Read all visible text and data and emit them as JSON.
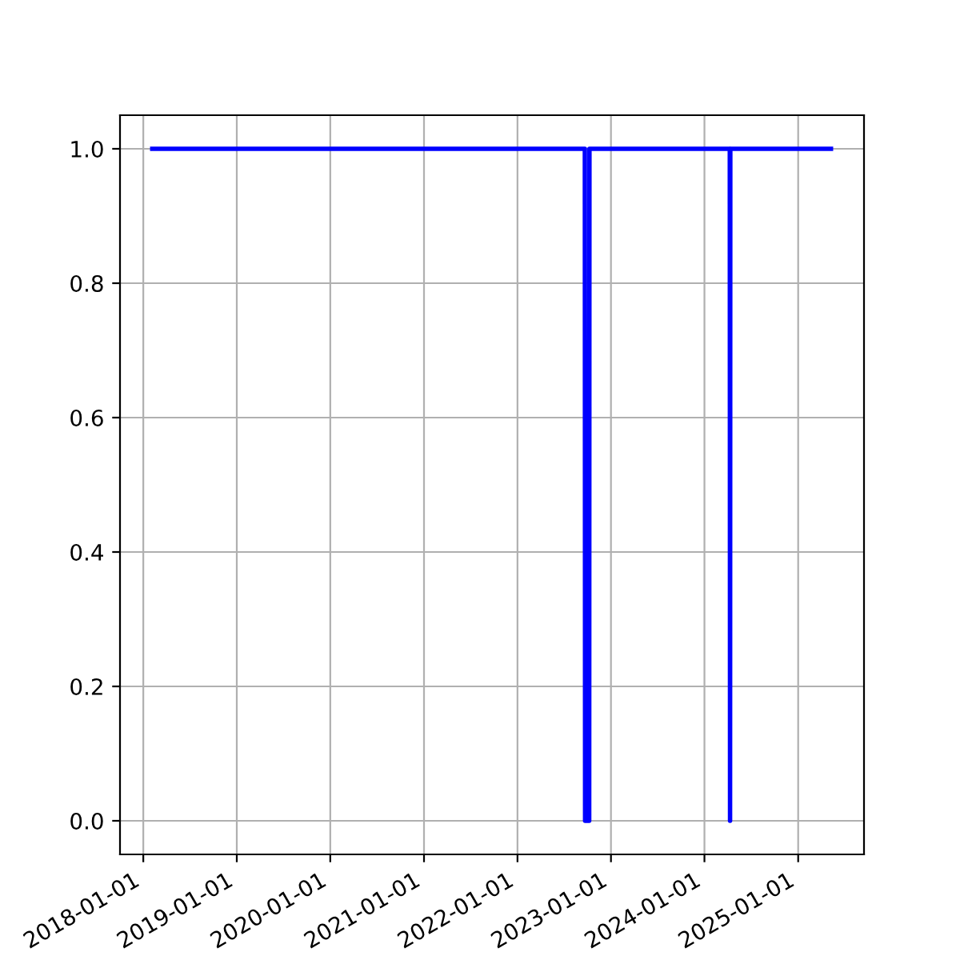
{
  "chart_data": {
    "type": "line",
    "x": [
      "2018-02-05",
      "2022-09-21",
      "2022-09-22",
      "2022-10-08",
      "2022-10-09",
      "2024-04-09",
      "2024-04-10",
      "2024-04-11",
      "2025-05-09"
    ],
    "series": [
      {
        "color": "#0000ff",
        "values": [
          1,
          1,
          0,
          0,
          1,
          1,
          0,
          1,
          1
        ]
      }
    ],
    "xlim": [
      "2017-10-02",
      "2025-09-15"
    ],
    "xticks": [
      {
        "value": "2018-01-01",
        "label": "2018-01-01"
      },
      {
        "value": "2019-01-01",
        "label": "2019-01-01"
      },
      {
        "value": "2020-01-01",
        "label": "2020-01-01"
      },
      {
        "value": "2021-01-01",
        "label": "2021-01-01"
      },
      {
        "value": "2022-01-01",
        "label": "2022-01-01"
      },
      {
        "value": "2023-01-01",
        "label": "2023-01-01"
      },
      {
        "value": "2024-01-01",
        "label": "2024-01-01"
      },
      {
        "value": "2025-01-01",
        "label": "2025-01-01"
      }
    ],
    "ylim": [
      -0.05,
      1.05
    ],
    "yticks": [
      {
        "value": 0,
        "label": "0.0"
      },
      {
        "value": 0.2,
        "label": "0.2"
      },
      {
        "value": 0.4,
        "label": "0.4"
      },
      {
        "value": 0.6,
        "label": "0.6"
      },
      {
        "value": 0.8,
        "label": "0.8"
      },
      {
        "value": 1,
        "label": "1.0"
      }
    ],
    "grid": true,
    "line_style": "solid",
    "marker": "none"
  }
}
